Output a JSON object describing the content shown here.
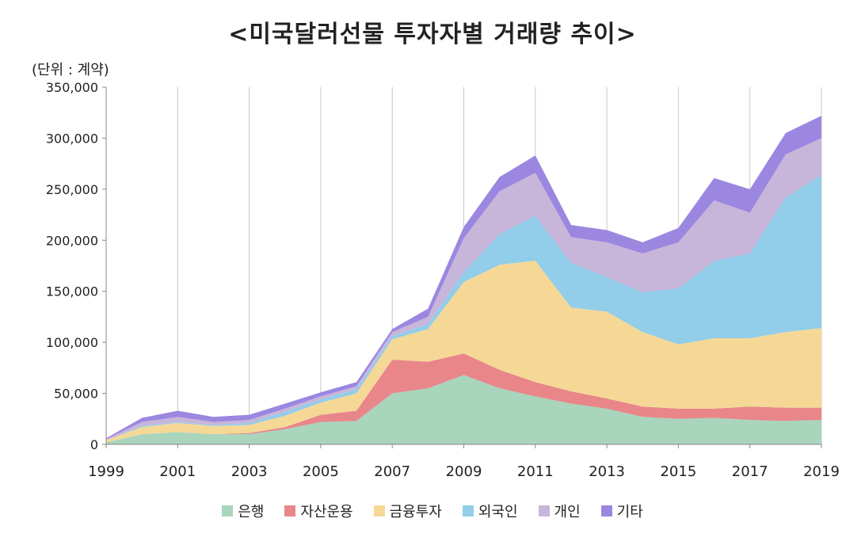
{
  "chart_data": {
    "type": "area",
    "stacked": true,
    "title": "<미국달러선물 투자자별 거래량 추이>",
    "unit_label": "(단위 : 계약)",
    "xlabel": "",
    "ylabel": "",
    "xlim": [
      1999,
      2019
    ],
    "ylim": [
      0,
      350000
    ],
    "y_ticks": [
      "0",
      "50,000",
      "100,000",
      "150,000",
      "200,000",
      "250,000",
      "300,000",
      "350,000"
    ],
    "y_tick_values": [
      0,
      50000,
      100000,
      150000,
      200000,
      250000,
      300000,
      350000
    ],
    "x_ticks": [
      "1999",
      "2001",
      "2003",
      "2005",
      "2007",
      "2009",
      "2011",
      "2013",
      "2015",
      "2017",
      "2019"
    ],
    "x_tick_values": [
      1999,
      2001,
      2003,
      2005,
      2007,
      2009,
      2011,
      2013,
      2015,
      2017,
      2019
    ],
    "grid": "vertical",
    "legend_position": "bottom",
    "x": [
      1999,
      2000,
      2001,
      2002,
      2003,
      2004,
      2005,
      2006,
      2007,
      2008,
      2009,
      2010,
      2011,
      2012,
      2013,
      2014,
      2015,
      2016,
      2017,
      2018,
      2019
    ],
    "series": [
      {
        "name": "은행",
        "color": "#a8d5bc",
        "values": [
          2000,
          10000,
          12000,
          10000,
          10000,
          15000,
          22000,
          23000,
          50000,
          55000,
          68000,
          55000,
          47000,
          40000,
          35000,
          27000,
          25000,
          26000,
          24000,
          23000,
          24000
        ]
      },
      {
        "name": "자산운용",
        "color": "#e8868a",
        "values": [
          0,
          0,
          0,
          0,
          1000,
          2000,
          7000,
          10000,
          33000,
          26000,
          21000,
          18000,
          14000,
          12000,
          10000,
          10000,
          10000,
          9000,
          13000,
          13000,
          12000
        ]
      },
      {
        "name": "금융투자",
        "color": "#f5d896",
        "values": [
          2000,
          7000,
          9000,
          8000,
          8000,
          11000,
          12000,
          17000,
          20000,
          32000,
          70000,
          103000,
          119000,
          82000,
          85000,
          73000,
          63000,
          69000,
          67000,
          74000,
          78000
        ]
      },
      {
        "name": "외국인",
        "color": "#92cde9",
        "values": [
          0,
          1000,
          1000,
          1000,
          2000,
          4000,
          3000,
          4000,
          3000,
          5000,
          10000,
          30000,
          44000,
          44000,
          34000,
          39000,
          55000,
          76000,
          83000,
          132000,
          150000
        ]
      },
      {
        "name": "개인",
        "color": "#c8b5da",
        "values": [
          1000,
          4000,
          5000,
          3000,
          3000,
          3000,
          3000,
          3000,
          4000,
          7000,
          33000,
          42000,
          42000,
          25000,
          34000,
          38000,
          45000,
          59000,
          40000,
          42000,
          36000
        ]
      },
      {
        "name": "기타",
        "color": "#9b87e0",
        "values": [
          1000,
          4000,
          6000,
          5000,
          5000,
          5000,
          4000,
          4000,
          3000,
          8000,
          11000,
          14000,
          17000,
          12000,
          12000,
          11000,
          14000,
          22000,
          23000,
          21000,
          22000
        ]
      }
    ]
  }
}
